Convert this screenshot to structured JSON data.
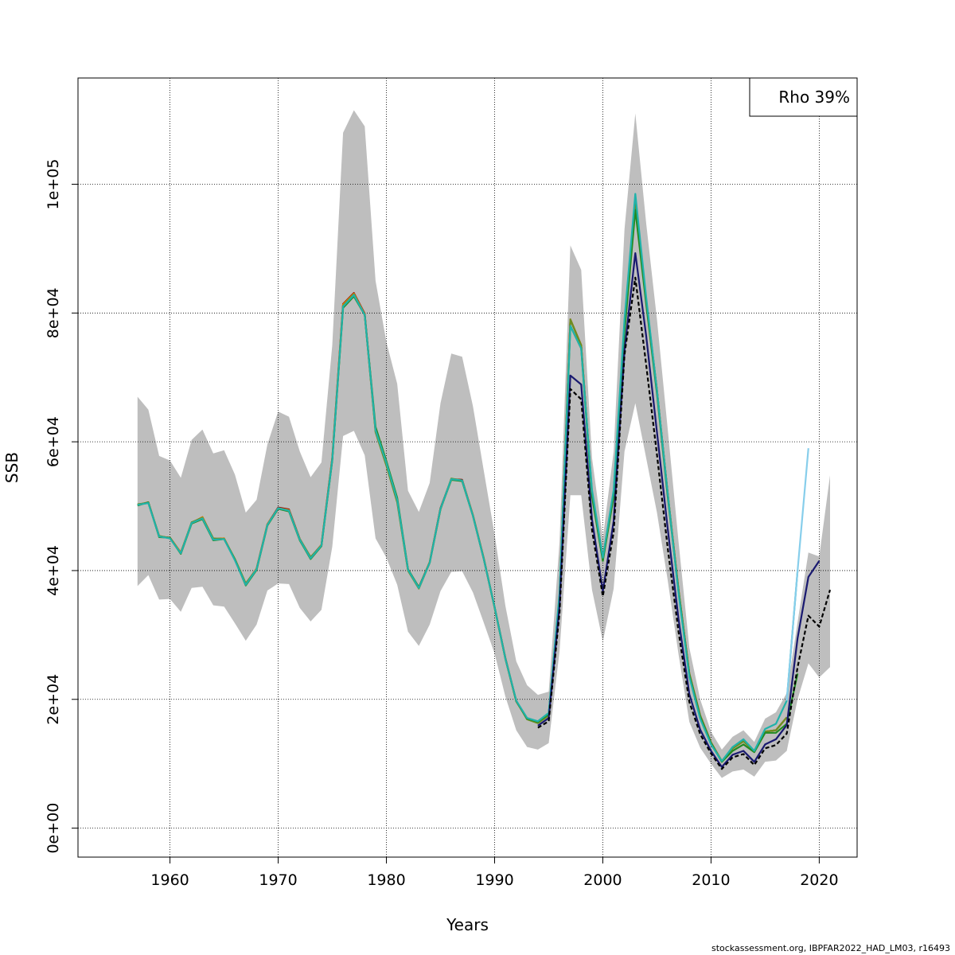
{
  "chart_data": {
    "type": "line",
    "xlabel": "Years",
    "ylabel": "SSB",
    "xlim": [
      1951.5,
      2023.5
    ],
    "ylim": [
      -4500,
      116500
    ],
    "x_ticks": [
      1960,
      1970,
      1980,
      1990,
      2000,
      2010,
      2020
    ],
    "x_tick_labels": [
      "1960",
      "1970",
      "1980",
      "1990",
      "2000",
      "2010",
      "2020"
    ],
    "y_ticks": [
      0,
      20000,
      40000,
      60000,
      80000,
      100000
    ],
    "y_tick_labels": [
      "0e+00",
      "2e+04",
      "4e+04",
      "6e+04",
      "8e+04",
      "1e+05"
    ],
    "grid": true,
    "legend": {
      "position": "top-right",
      "text": "Rho 39%"
    },
    "confidence_band": {
      "color": "#bebebe",
      "x": [
        1957,
        1958,
        1959,
        1960,
        1961,
        1962,
        1963,
        1964,
        1965,
        1966,
        1967,
        1968,
        1969,
        1970,
        1971,
        1972,
        1973,
        1974,
        1975,
        1976,
        1977,
        1978,
        1979,
        1980,
        1981,
        1982,
        1983,
        1984,
        1985,
        1986,
        1987,
        1988,
        1989,
        1990,
        1991,
        1992,
        1993,
        1994,
        1995,
        1996,
        1997,
        1998,
        1999,
        2000,
        2001,
        2002,
        2003,
        2004,
        2005,
        2006,
        2007,
        2008,
        2009,
        2010,
        2011,
        2012,
        2013,
        2014,
        2015,
        2016,
        2017,
        2018,
        2019,
        2020,
        2021
      ],
      "upper": [
        67000,
        65000,
        57800,
        57100,
        54400,
        60300,
        61900,
        58200,
        58700,
        54900,
        49000,
        51000,
        59600,
        64700,
        63900,
        58500,
        54500,
        56800,
        75000,
        108000,
        111500,
        109000,
        85000,
        75500,
        69000,
        52400,
        49100,
        53600,
        66000,
        73700,
        73200,
        65500,
        55500,
        45600,
        34500,
        25900,
        22200,
        20700,
        21200,
        44500,
        90500,
        86700,
        57500,
        45000,
        58500,
        93000,
        111000,
        94000,
        79000,
        62000,
        44500,
        28000,
        20000,
        15000,
        12200,
        14200,
        15200,
        13400,
        17000,
        18000,
        21000,
        32000,
        42800,
        42200,
        54800
      ],
      "lower": [
        37600,
        39300,
        35500,
        35600,
        33600,
        37300,
        37500,
        34600,
        34400,
        31800,
        29100,
        31600,
        36900,
        38000,
        37900,
        34200,
        32100,
        33900,
        43700,
        60900,
        61700,
        57900,
        45000,
        42000,
        37800,
        30500,
        28300,
        31600,
        36800,
        39800,
        39900,
        36600,
        31900,
        27100,
        20400,
        15200,
        12600,
        12200,
        13200,
        27500,
        51700,
        51700,
        37000,
        29000,
        37200,
        58500,
        66000,
        57500,
        49000,
        38500,
        27000,
        16500,
        12500,
        10000,
        7800,
        8800,
        9100,
        8000,
        10300,
        10500,
        12000,
        20000,
        25600,
        23400,
        25000
      ]
    },
    "series": [
      {
        "color": "#8b0000",
        "x": [
          1957,
          1958,
          1959,
          1960,
          1961,
          1962,
          1963,
          1964,
          1965,
          1966,
          1967,
          1968,
          1969,
          1970,
          1971,
          1972,
          1973,
          1974,
          1975,
          1976,
          1977,
          1978,
          1979,
          1980,
          1981,
          1982,
          1983,
          1984,
          1985,
          1986,
          1987,
          1988,
          1989,
          1990,
          1991,
          1992,
          1993,
          1994,
          1995,
          1996,
          1997,
          1998,
          1999,
          2000,
          2001,
          2002,
          2003,
          2004,
          2005,
          2006,
          2007,
          2008,
          2009,
          2010,
          2011,
          2012,
          2013,
          2014,
          2015,
          2016,
          2017
        ],
        "y": [
          50200,
          50600,
          45300,
          45100,
          42800,
          47400,
          48300,
          44900,
          45000,
          41700,
          37900,
          40300,
          47200,
          49800,
          49500,
          44900,
          42000,
          44000,
          57500,
          81400,
          83100,
          79900,
          61700,
          56600,
          50900,
          40100,
          37400,
          41300,
          49700,
          54200,
          54100,
          48600,
          41900,
          34300,
          26400,
          19700,
          17000,
          16500,
          17700,
          36000,
          79000,
          75000,
          52000,
          42000,
          52000,
          78000,
          97000,
          82000,
          68000,
          52000,
          37000,
          24000,
          17500,
          13300,
          10400,
          12400,
          13500,
          12000,
          15000,
          15200,
          17200
        ]
      },
      {
        "color": "#e68a00",
        "x": [
          1957,
          1958,
          1959,
          1960,
          1961,
          1962,
          1963,
          1964,
          1965,
          1966,
          1967,
          1968,
          1969,
          1970,
          1971,
          1972,
          1973,
          1974,
          1975,
          1976,
          1977,
          1978,
          1979,
          1980,
          1981,
          1982,
          1983,
          1984,
          1985,
          1986,
          1987,
          1988,
          1989,
          1990,
          1991,
          1992,
          1993,
          1994,
          1995,
          1996,
          1997,
          1998,
          1999,
          2000,
          2001,
          2002,
          2003,
          2004,
          2005,
          2006,
          2007,
          2008,
          2009,
          2010,
          2011,
          2012,
          2013,
          2014,
          2015,
          2016,
          2017
        ],
        "y": [
          50200,
          50600,
          45300,
          45100,
          42800,
          47400,
          48300,
          44900,
          45000,
          41700,
          37900,
          40300,
          47200,
          49700,
          49400,
          44800,
          41900,
          44000,
          57400,
          81300,
          83000,
          79800,
          61600,
          56500,
          50800,
          40000,
          37300,
          41300,
          49600,
          54100,
          54000,
          48600,
          41900,
          34200,
          26300,
          19700,
          17000,
          16400,
          17700,
          36000,
          79000,
          75000,
          52000,
          42000,
          52000,
          78000,
          97000,
          82000,
          68000,
          52000,
          37000,
          24000,
          17500,
          13300,
          10400,
          12400,
          13500,
          12000,
          15000,
          15200,
          17200
        ]
      },
      {
        "color": "#6b8e23",
        "x": [
          1957,
          1958,
          1959,
          1960,
          1961,
          1962,
          1963,
          1964,
          1965,
          1966,
          1967,
          1968,
          1969,
          1970,
          1971,
          1972,
          1973,
          1974,
          1975,
          1976,
          1977,
          1978,
          1979,
          1980,
          1981,
          1982,
          1983,
          1984,
          1985,
          1986,
          1987,
          1988,
          1989,
          1990,
          1991,
          1992,
          1993,
          1994,
          1995,
          1996,
          1997,
          1998,
          1999,
          2000,
          2001,
          2002,
          2003,
          2004,
          2005,
          2006,
          2007,
          2008,
          2009,
          2010,
          2011,
          2012,
          2013,
          2014,
          2015,
          2016,
          2017
        ],
        "y": [
          50300,
          50500,
          45400,
          45000,
          42700,
          47500,
          48200,
          45000,
          44900,
          41800,
          38000,
          40200,
          47100,
          49600,
          49300,
          44900,
          42100,
          43900,
          57200,
          81100,
          82900,
          79700,
          61500,
          56300,
          50600,
          40000,
          37200,
          41200,
          49500,
          54300,
          54000,
          48500,
          41800,
          34300,
          26300,
          19800,
          16900,
          16300,
          17500,
          36100,
          79000,
          75000,
          52000,
          42000,
          52000,
          78000,
          97000,
          82000,
          68000,
          52000,
          37000,
          24000,
          17500,
          13300,
          10400,
          12400,
          13500,
          12000,
          15000,
          15200,
          17200
        ]
      },
      {
        "color": "#228b22",
        "x": [
          1957,
          1958,
          1959,
          1960,
          1961,
          1962,
          1963,
          1964,
          1965,
          1966,
          1967,
          1968,
          1969,
          1970,
          1971,
          1972,
          1973,
          1974,
          1975,
          1976,
          1977,
          1978,
          1979,
          1980,
          1981,
          1982,
          1983,
          1984,
          1985,
          1986,
          1987,
          1988,
          1989,
          1990,
          1991,
          1992,
          1993,
          1994,
          1995,
          1996,
          1997,
          1998,
          1999,
          2000,
          2001,
          2002,
          2003,
          2004,
          2005,
          2006,
          2007,
          2008,
          2009,
          2010,
          2011,
          2012,
          2013,
          2014,
          2015,
          2016,
          2017,
          2018
        ],
        "y": [
          50100,
          50600,
          45200,
          45100,
          42600,
          47300,
          48000,
          44700,
          44900,
          41700,
          37700,
          40100,
          47000,
          49600,
          49200,
          44700,
          41800,
          43800,
          57100,
          80800,
          82600,
          79700,
          62300,
          57000,
          51300,
          40200,
          37400,
          41200,
          49600,
          54100,
          53900,
          48500,
          41800,
          34300,
          26300,
          19700,
          17000,
          16500,
          17700,
          36000,
          78000,
          74500,
          51500,
          41500,
          51500,
          77000,
          96000,
          81500,
          67500,
          51500,
          36800,
          23800,
          17300,
          13200,
          10300,
          12000,
          13000,
          11800,
          14800,
          14800,
          16200,
          24000
        ]
      },
      {
        "color": "#20b2aa",
        "x": [
          1957,
          1958,
          1959,
          1960,
          1961,
          1962,
          1963,
          1964,
          1965,
          1966,
          1967,
          1968,
          1969,
          1970,
          1971,
          1972,
          1973,
          1974,
          1975,
          1976,
          1977,
          1978,
          1979,
          1980,
          1981,
          1982,
          1983,
          1984,
          1985,
          1986,
          1987,
          1988,
          1989,
          1990,
          1991,
          1992,
          1993,
          1994,
          1995,
          1996,
          1997,
          1998,
          1999,
          2000,
          2001,
          2002,
          2003,
          2004,
          2005,
          2006,
          2007,
          2008,
          2009,
          2010,
          2011,
          2012,
          2013,
          2014,
          2015,
          2016,
          2017,
          2018
        ],
        "y": [
          50200,
          50500,
          45300,
          45000,
          42700,
          47400,
          48100,
          44800,
          44900,
          41600,
          37800,
          40200,
          47100,
          49700,
          49300,
          44800,
          41900,
          43900,
          57200,
          81000,
          82800,
          79700,
          61800,
          56700,
          51000,
          40100,
          37300,
          41200,
          49600,
          54200,
          54000,
          48500,
          41800,
          34300,
          26300,
          19800,
          17100,
          16600,
          17900,
          36500,
          78000,
          74500,
          52500,
          42000,
          52500,
          79000,
          98500,
          82500,
          68000,
          52000,
          36500,
          23500,
          17000,
          13000,
          10400,
          12600,
          13800,
          12000,
          15400,
          16200,
          19800,
          40000
        ]
      },
      {
        "color": "#87ceeb",
        "x": [
          2017,
          2018,
          2019
        ],
        "y": [
          19800,
          40000,
          59000
        ]
      },
      {
        "color": "#191970",
        "x": [
          1994,
          1995,
          1996,
          1997,
          1998,
          1999,
          2000,
          2001,
          2002,
          2003,
          2004,
          2005,
          2006,
          2007,
          2008,
          2009,
          2010,
          2011,
          2012,
          2013,
          2014,
          2015,
          2016,
          2017,
          2018,
          2019,
          2020
        ],
        "y": [
          15900,
          17100,
          34500,
          70300,
          68900,
          47900,
          36800,
          47700,
          74200,
          89300,
          76500,
          61500,
          46500,
          32500,
          20800,
          15300,
          12000,
          9500,
          11400,
          12000,
          10300,
          13000,
          13800,
          16000,
          29500,
          39000,
          41500
        ]
      },
      {
        "color": "#000000",
        "dashed": true,
        "x": [
          1994,
          1995,
          1996,
          1997,
          1998,
          1999,
          2000,
          2001,
          2002,
          2003,
          2004,
          2005,
          2006,
          2007,
          2008,
          2009,
          2010,
          2011,
          2012,
          2013,
          2014,
          2015,
          2016,
          2017,
          2018,
          2019,
          2020,
          2021
        ],
        "y": [
          15600,
          16600,
          33500,
          68200,
          66600,
          46300,
          36000,
          46000,
          73500,
          85500,
          72000,
          58000,
          43500,
          30500,
          19600,
          14600,
          11600,
          9200,
          11000,
          11500,
          9800,
          12400,
          12900,
          14700,
          25000,
          33000,
          31300,
          37000
        ]
      }
    ]
  },
  "footer": "stockassessment.org, IBPFAR2022_HAD_LM03, r16493"
}
